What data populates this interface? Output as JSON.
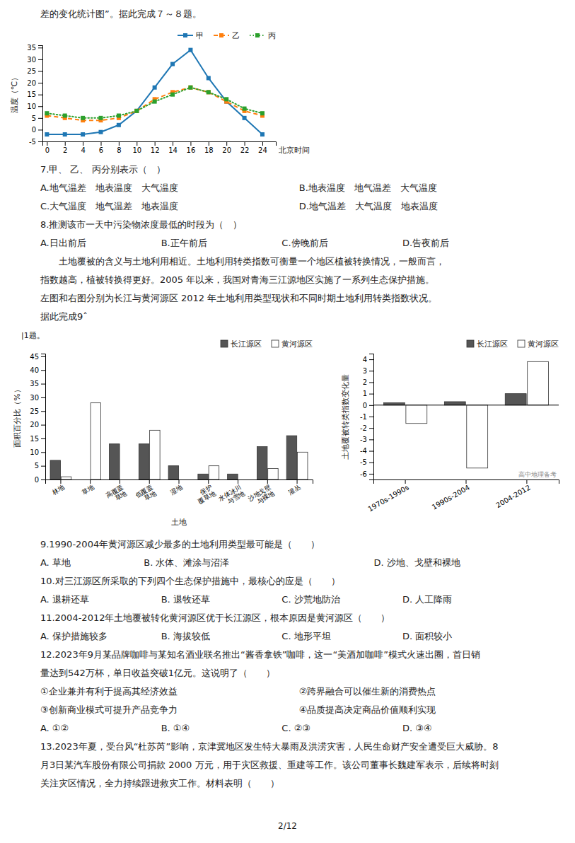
{
  "chart_data": [
    {
      "type": "line",
      "y_label": "温度（℃）",
      "x_label": "北京时间",
      "x": [
        0,
        2,
        4,
        6,
        8,
        10,
        12,
        14,
        16,
        18,
        20,
        22,
        24
      ],
      "series": [
        {
          "name": "甲",
          "values": [
            -2,
            -2,
            -2,
            -1,
            2,
            8,
            18,
            28,
            34,
            22,
            12,
            5,
            -2
          ],
          "line_style": "solid",
          "marker": "square"
        },
        {
          "name": "乙",
          "values": [
            6,
            5,
            4,
            4,
            5,
            8,
            13,
            16,
            18,
            16,
            12,
            8,
            6
          ],
          "line_style": "dashed",
          "marker": "square"
        },
        {
          "name": "丙",
          "values": [
            7,
            6,
            5,
            5,
            6,
            8,
            12,
            15,
            18,
            16,
            13,
            9,
            7
          ],
          "line_style": "dotted",
          "marker": "square"
        }
      ],
      "xlim": [
        -0.5,
        25.5
      ],
      "xticks": [
        0,
        2,
        4,
        6,
        8,
        10,
        12,
        14,
        16,
        18,
        20,
        22,
        24
      ],
      "ylim": [
        -5,
        36
      ],
      "yticks": [
        -5,
        0,
        5,
        10,
        15,
        20,
        25,
        30,
        35
      ],
      "legend": "upper right",
      "grid": false
    },
    {
      "type": "bar",
      "x_label": "土地",
      "y_label": "面积百分比（%）",
      "categories": [
        "林地",
        "草地",
        "高覆盖\n草地",
        "低覆盖\n草地",
        "湿地",
        "保护\n覆草地",
        "水体冰川\n与雪地",
        "沙地戈壁\n与裸地",
        "灌丛"
      ],
      "series": [
        {
          "name": "长江源区",
          "color": "#555555",
          "values": [
            7,
            0,
            13,
            13,
            5,
            2,
            2,
            12,
            16
          ]
        },
        {
          "name": "黄河源区",
          "color": "#ffffff",
          "values": [
            1,
            28,
            0,
            18,
            0,
            5,
            0,
            4,
            10
          ]
        }
      ],
      "ylim": [
        0,
        46
      ],
      "yticks": [
        0,
        5,
        10,
        15,
        20,
        25,
        30,
        35,
        40,
        45
      ],
      "legend": "upper right",
      "grid": false,
      "annotations": [
        "|1题。"
      ]
    },
    {
      "type": "bar",
      "y_label": "土地覆被转类指数变化量",
      "categories": [
        "1970s-1990s",
        "1990s-2004",
        "2004-2012"
      ],
      "series": [
        {
          "name": "长江源区",
          "color": "#555555",
          "values": [
            0.2,
            0.3,
            1.0
          ]
        },
        {
          "name": "黄河源区",
          "color": "#ffffff",
          "values": [
            -1.6,
            -5.5,
            3.8
          ]
        }
      ],
      "ylim": [
        -6.5,
        4.5
      ],
      "yticks": [
        -6,
        -5,
        -4,
        -3,
        -2,
        -1,
        0,
        1,
        2,
        3,
        4
      ],
      "legend": "upper right",
      "grid": false,
      "annotations": [
        "高中地理备考"
      ]
    }
  ],
  "texts": {
    "top": [
      [
        "差的变化统计图”。据此完成７～８题。"
      ]
    ],
    "middle": [
      [
        "7.甲、 乙、 丙分别表示（　）"
      ],
      [
        "A.地气温差　地表温度　大气温度",
        "B.地表温度　地气温差　大气温度"
      ],
      [
        "C.大气温度　地气温差　地表温度",
        "D.地气温差　大气温度　地表温度"
      ],
      [
        "8.推测该市一天中污染物浓度最低的时段为（　）"
      ],
      [
        "A.日出前后",
        "B.正午前后",
        "C.傍晚前后",
        "D.告夜前后"
      ],
      [
        "　　土地覆被的含义与土地利用相近。土地利用转类指数可衡量一个地区植被转换情况，一般而言，"
      ],
      [
        "指数越高，植被转换得更好。2005 年以来，我国对青海三江源地区实施了一系列生态保护措施。"
      ],
      [
        "左图和右图分别为长江与黄河源区 2012 年土地利用类型现状和不同时期土地利用转类指数状况。"
      ],
      [
        "据此完成9ˆ"
      ]
    ],
    "bottom": [
      [
        "9.1990-2004年黄河源区减少最多的土地利用类型最可能是（　　）"
      ],
      [
        "A. 草地",
        "B. 水体、滩涂与沼泽",
        "D. 沙地、戈壁和裸地"
      ],
      [
        "10.对三江源区所采取的下列四个生态保护措施中，最核心的应是（　　）"
      ],
      [
        "A. 退耕还草",
        "B. 退牧还草",
        "C. 沙荒地防治",
        "D. 人工降雨"
      ],
      [
        "11.2004-2012年土地覆被转化黄河源区优于长江源区，根本原因是黄河源区（　　）"
      ],
      [
        "A. 保护措施较多",
        "B. 海拔较低",
        "C. 地形平坦",
        "D. 面积较小"
      ],
      [
        "12.2023年9月某品牌咖啡与某知名酒业联名推出“酱香拿铁”咖啡，这一“美酒加咖啡”模式火速出圈，首日销"
      ],
      [
        "量达到542万杯，单日收益突破1亿元。这说明了（　　）"
      ],
      [
        "①企业兼并有利于提高其经济效益",
        "②跨界融合可以催生新的消费热点"
      ],
      [
        "③创新商业模式可提升产品竞争力",
        "④品质提高决定商品价值顺利实现"
      ],
      [
        "A. ①②",
        "B. ①④",
        "C. ②③",
        "D. ③④"
      ],
      [
        "13.2023年夏，受台风“杜苏芮”影响，京津冀地区发生特大暴雨及洪涝灾害，人民生命财产安全遭受巨大威胁。8"
      ],
      [
        "月3日某汽车股份有限公司捐款 2000 万元，用于灾区救援、重建等工作。该公司董事长魏建军表示，后续将时刻"
      ],
      [
        "关注灾区情况，全力持续跟进救灾工作。材料表明（　　）"
      ]
    ],
    "footer": "2/12"
  }
}
